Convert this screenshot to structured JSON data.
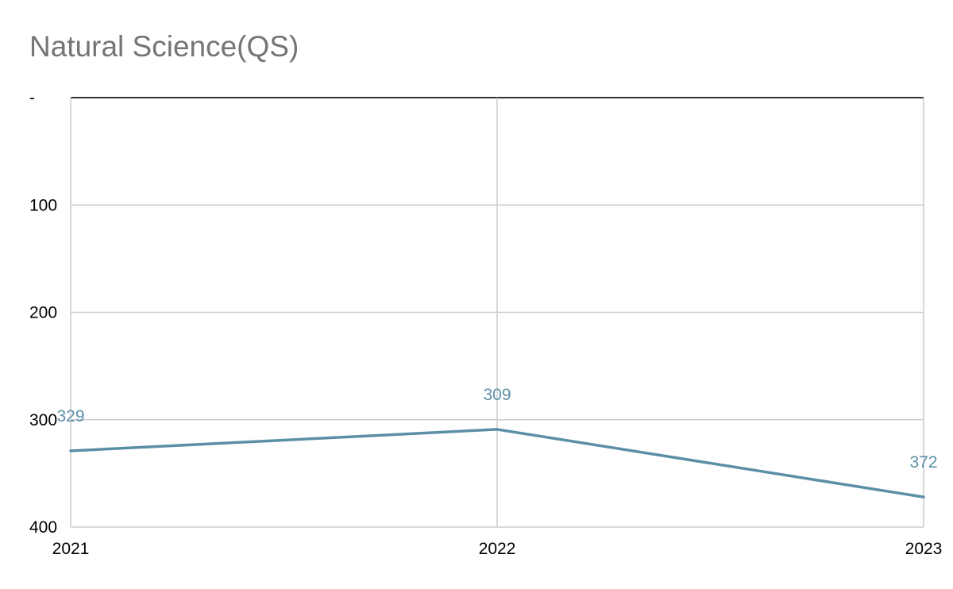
{
  "chart_data": {
    "type": "line",
    "title": "Natural Science(QS)",
    "xlabel": "",
    "ylabel": "",
    "categories": [
      "2021",
      "2022",
      "2023"
    ],
    "series": [
      {
        "values": [
          329,
          309,
          372
        ],
        "color": "#5b8fa8"
      }
    ],
    "ylim": [
      0,
      400
    ],
    "y_reversed": true,
    "y_ticks": [
      0,
      100,
      200,
      300,
      400
    ],
    "y_tick_labels": [
      "-",
      "100",
      "200",
      "300",
      "400"
    ],
    "grid": true,
    "data_labels": [
      "329",
      "309",
      "372"
    ],
    "legend": "none"
  }
}
